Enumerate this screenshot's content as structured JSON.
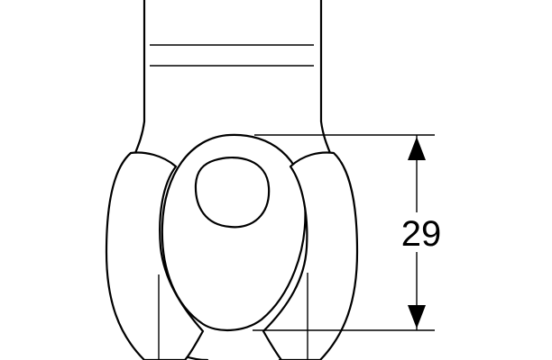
{
  "dimension": {
    "value": "29"
  }
}
